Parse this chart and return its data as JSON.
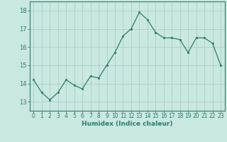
{
  "x": [
    0,
    1,
    2,
    3,
    4,
    5,
    6,
    7,
    8,
    9,
    10,
    11,
    12,
    13,
    14,
    15,
    16,
    17,
    18,
    19,
    20,
    21,
    22,
    23
  ],
  "y": [
    14.2,
    13.5,
    13.1,
    13.5,
    14.2,
    13.9,
    13.7,
    14.4,
    14.3,
    15.0,
    15.7,
    16.6,
    17.0,
    17.9,
    17.5,
    16.8,
    16.5,
    16.5,
    16.4,
    15.7,
    16.5,
    16.5,
    16.2,
    15.0
  ],
  "xlabel": "Humidex (Indice chaleur)",
  "line_color": "#2e7d6e",
  "marker_color": "#2e7d6e",
  "bg_color": "#c8e8e0",
  "grid_color": "#a8c8c0",
  "axis_color": "#2e7d6e",
  "tick_color": "#2e7d6e",
  "ylim": [
    12.5,
    18.5
  ],
  "xlim": [
    -0.5,
    23.5
  ],
  "yticks": [
    13,
    14,
    15,
    16,
    17,
    18
  ],
  "xticks": [
    0,
    1,
    2,
    3,
    4,
    5,
    6,
    7,
    8,
    9,
    10,
    11,
    12,
    13,
    14,
    15,
    16,
    17,
    18,
    19,
    20,
    21,
    22,
    23
  ],
  "tick_fontsize": 5.5,
  "xlabel_fontsize": 6.5
}
